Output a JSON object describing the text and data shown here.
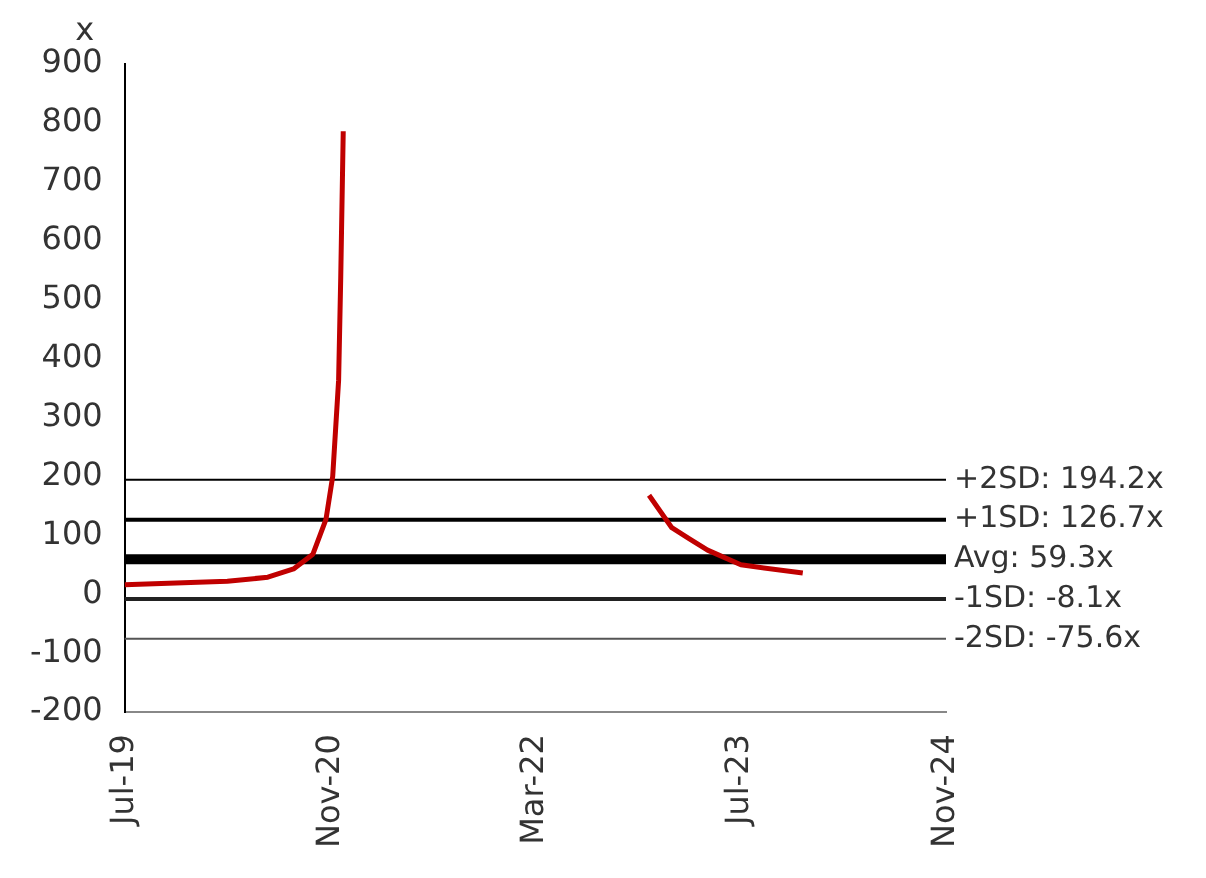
{
  "chart_data": {
    "type": "line",
    "ylabel": "x",
    "series": [
      {
        "color": "#c00000",
        "x": [
          "2019-07-01",
          "2020-03-01",
          "2020-06-05",
          "2020-08-05",
          "2020-09-20",
          "2020-10-21",
          "2020-11-06",
          "2020-11-20",
          "2020-11-25",
          "2020-12-01"
        ],
        "values": [
          16,
          22,
          29,
          43,
          68,
          127,
          200,
          363,
          536,
          786
        ]
      },
      {
        "color": "#c00000",
        "x": [
          "2022-11-27",
          "2023-01-20",
          "2023-03-01",
          "2023-04-15",
          "2023-07-03",
          "2023-11-27"
        ],
        "values": [
          168,
          113,
          95,
          75,
          50,
          36
        ]
      }
    ],
    "xlim": [
      "2019-07",
      "2024-11"
    ],
    "xticks": [
      {
        "value": "2019-07",
        "label": "Jul-19"
      },
      {
        "value": "2020-11",
        "label": "Nov-20"
      },
      {
        "value": "2022-03",
        "label": "Mar-22"
      },
      {
        "value": "2023-07",
        "label": "Jul-23"
      },
      {
        "value": "2024-11",
        "label": "Nov-24"
      }
    ],
    "ylim": [
      -200,
      900
    ],
    "yticks": [
      -200,
      -100,
      0,
      100,
      200,
      300,
      400,
      500,
      600,
      700,
      800,
      900
    ],
    "ref_lines": [
      {
        "axis": "y",
        "value": 194.2,
        "label": "+2SD: 194.2x",
        "color": "#000000"
      },
      {
        "axis": "y",
        "value": 126.7,
        "label": "+1SD: 126.7x",
        "color": "#000000"
      },
      {
        "axis": "y",
        "value": 59.3,
        "label": "Avg: 59.3x",
        "color": "#000000"
      },
      {
        "axis": "y",
        "value": -8.1,
        "label": "-1SD: -8.1x",
        "color": "#222222"
      },
      {
        "axis": "y",
        "value": -75.6,
        "label": "-2SD: -75.6x",
        "color": "#555555"
      }
    ],
    "grid": false,
    "legend": false,
    "marker": "none",
    "line_style": "solid"
  }
}
